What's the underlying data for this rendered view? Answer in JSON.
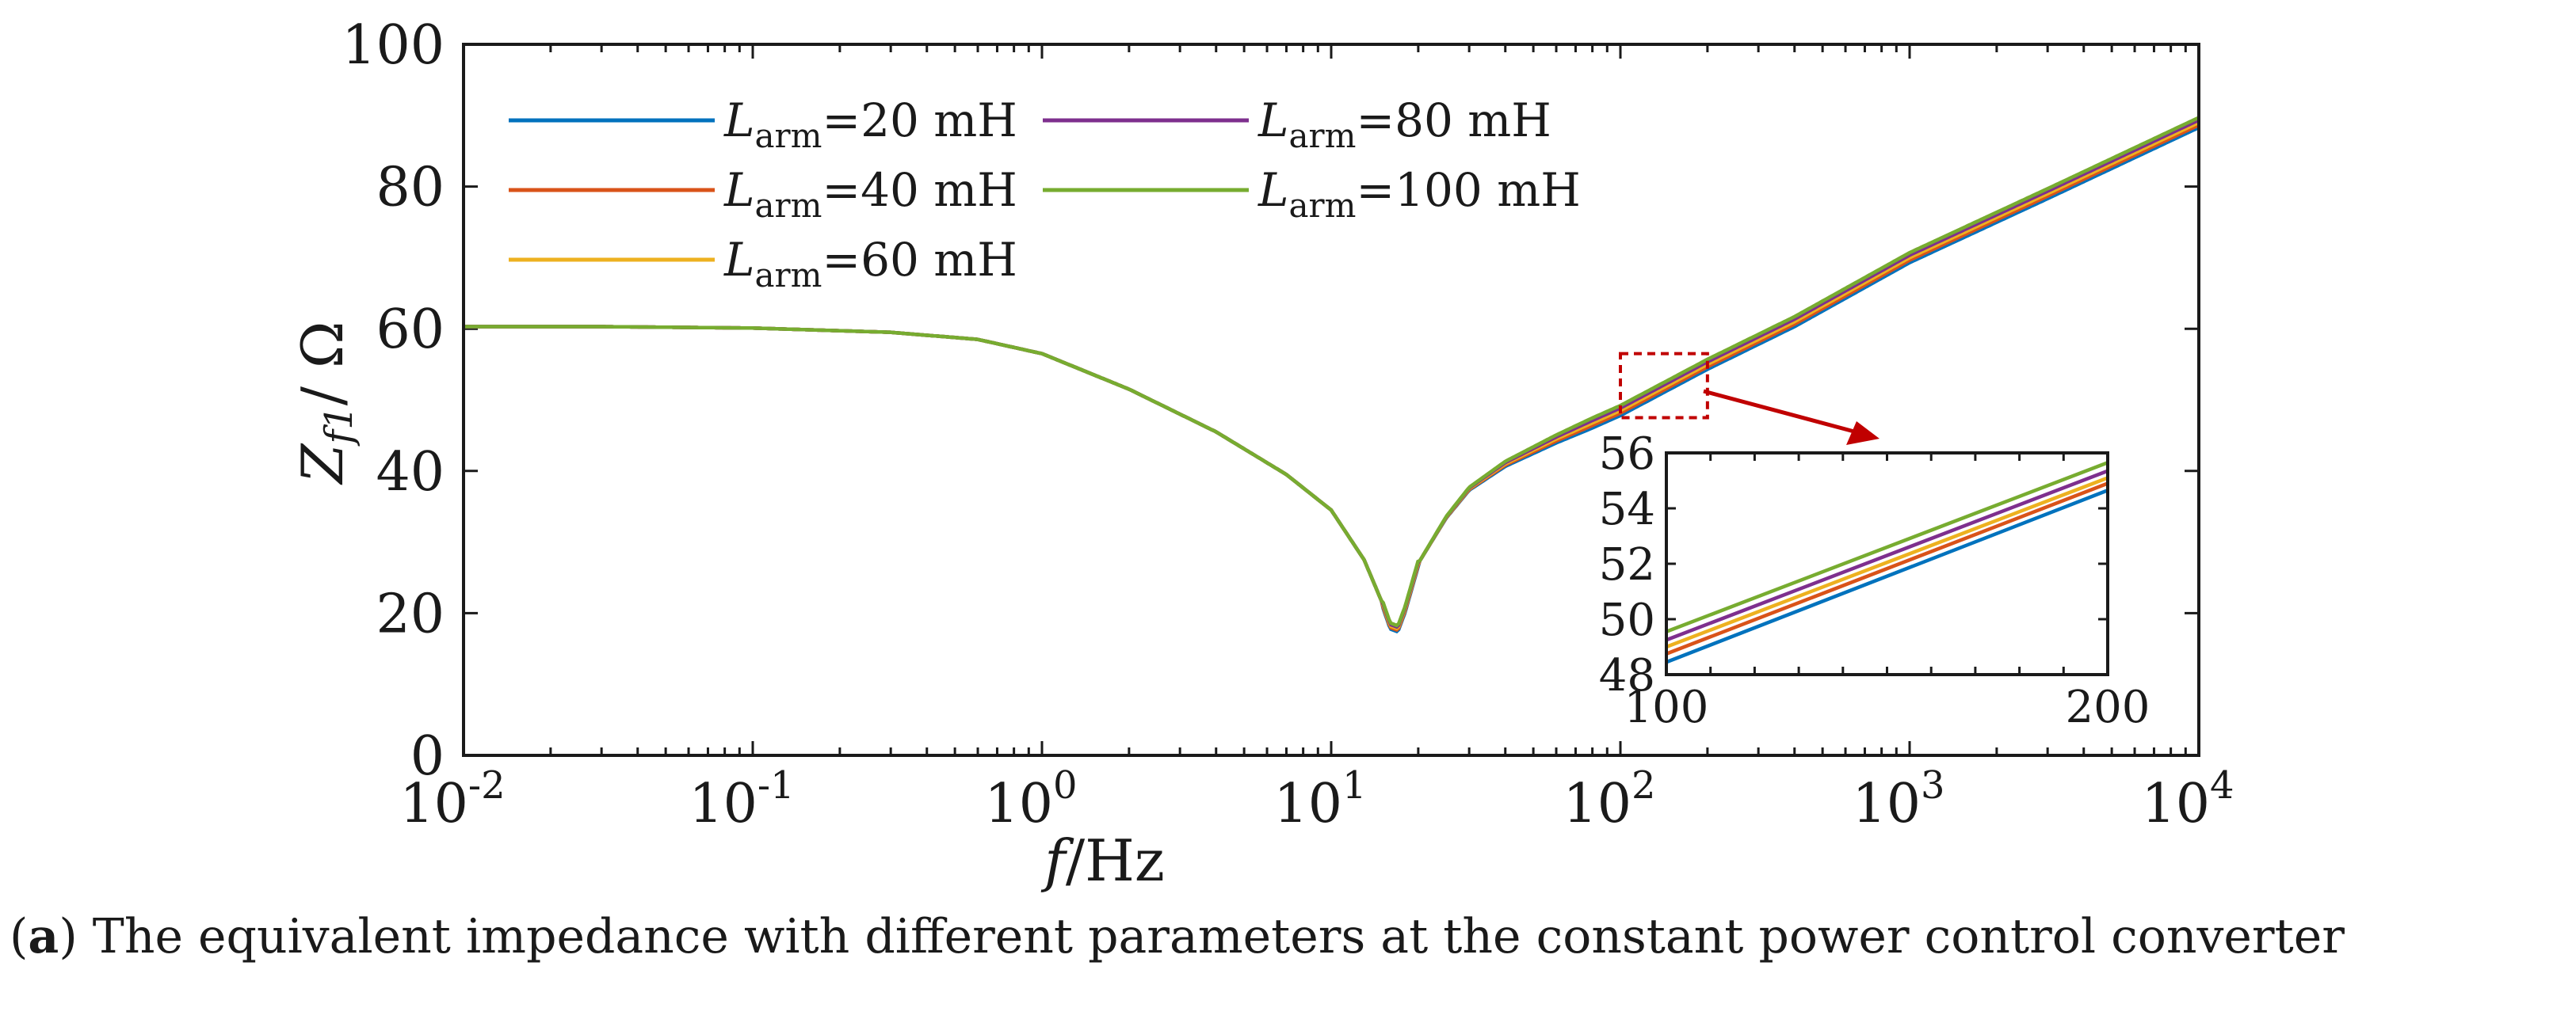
{
  "chart_data": {
    "type": "line",
    "title": "",
    "xscale": "log",
    "xlim": [
      0.01,
      10000
    ],
    "ylim": [
      0,
      100
    ],
    "xlabel": "f/Hz",
    "xlabel_italic": "f",
    "xlabel_rest": "/Hz",
    "ylabel": "Zf1/ Ω",
    "ylabel_main": "Z",
    "ylabel_sub": "f1",
    "ylabel_rest": "/ Ω",
    "x_ticks": [
      {
        "value": 0.01,
        "base": "10",
        "exp": "-2"
      },
      {
        "value": 0.1,
        "base": "10",
        "exp": "-1"
      },
      {
        "value": 1,
        "base": "10",
        "exp": "0"
      },
      {
        "value": 10,
        "base": "10",
        "exp": "1"
      },
      {
        "value": 100,
        "base": "10",
        "exp": "2"
      },
      {
        "value": 1000,
        "base": "10",
        "exp": "3"
      },
      {
        "value": 10000,
        "base": "10",
        "exp": "4"
      }
    ],
    "y_ticks": [
      0,
      20,
      40,
      60,
      80,
      100
    ],
    "legend_position": "top-left",
    "legend_symbol": "L",
    "legend_sub": "arm",
    "series": [
      {
        "name": "Larm=20 mH",
        "label_value": "=20 mH",
        "color": "#0072BD",
        "L": 0.02
      },
      {
        "name": "Larm=40 mH",
        "label_value": "=40 mH",
        "color": "#D95319",
        "L": 0.04
      },
      {
        "name": "Larm=60 mH",
        "label_value": "=60 mH",
        "color": "#EDB120",
        "L": 0.06
      },
      {
        "name": "Larm=80 mH",
        "label_value": "=80 mH",
        "color": "#7E2F8E",
        "L": 0.08
      },
      {
        "name": "Larm=100 mH",
        "label_value": "=100 mH",
        "color": "#77AC30",
        "L": 0.1
      }
    ],
    "model_points": {
      "x": [
        0.01,
        0.03,
        0.1,
        0.3,
        0.6,
        1,
        2,
        4,
        7,
        10,
        13,
        15,
        16,
        17,
        18,
        20,
        25,
        30,
        40,
        60,
        100,
        200,
        400,
        1000,
        3000,
        10000
      ],
      "y": [
        60.3,
        60.3,
        60.1,
        59.5,
        58.5,
        56.5,
        51.5,
        45.5,
        39.5,
        34.5,
        27.5,
        21.5,
        18.2,
        17.8,
        20.5,
        27,
        33.5,
        37.5,
        41,
        44.5,
        48.5,
        55,
        61,
        70,
        79,
        89
      ]
    },
    "inset": {
      "xlim": [
        100,
        200
      ],
      "ylim": [
        48,
        56
      ],
      "x_ticks": [
        100,
        200
      ],
      "y_ticks": [
        48,
        50,
        52,
        54,
        56
      ],
      "lines": [
        {
          "series": "Larm=20 mH",
          "y_start": 48.45,
          "y_end": 54.65
        },
        {
          "series": "Larm=40 mH",
          "y_start": 48.75,
          "y_end": 54.9
        },
        {
          "series": "Larm=60 mH",
          "y_start": 49.0,
          "y_end": 55.1
        },
        {
          "series": "Larm=80 mH",
          "y_start": 49.25,
          "y_end": 55.35
        },
        {
          "series": "Larm=100 mH",
          "y_start": 49.55,
          "y_end": 55.65
        }
      ]
    },
    "zoom_box": {
      "xlim": [
        100,
        200
      ],
      "ylim": [
        47.5,
        56.5
      ],
      "color": "#C00000"
    }
  },
  "caption": {
    "label": "a",
    "text": "The equivalent impedance with different parameters at the constant power control converter"
  }
}
